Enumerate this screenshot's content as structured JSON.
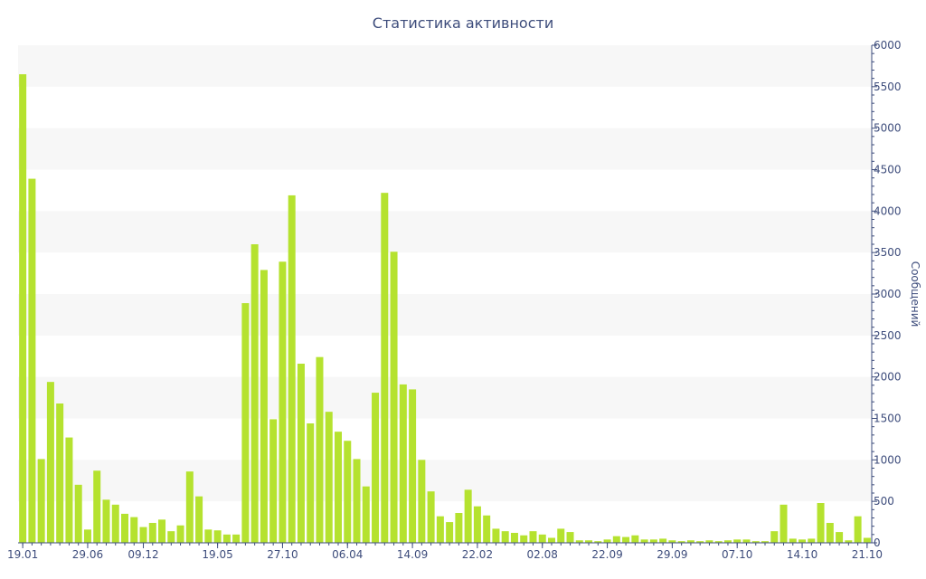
{
  "chart_data": {
    "type": "bar",
    "title": "Статистика активности",
    "ylabel": "Сообщений",
    "xlabel": "",
    "ylim": [
      0,
      6000
    ],
    "y_ticks": [
      0,
      500,
      1000,
      1500,
      2000,
      2500,
      3000,
      3500,
      4000,
      4500,
      5000,
      5500,
      6000
    ],
    "y_axis_position": "right",
    "x_tick_labels": [
      {
        "index": 0,
        "label": "19.01"
      },
      {
        "index": 7,
        "label": "29.06"
      },
      {
        "index": 13,
        "label": "09.12"
      },
      {
        "index": 21,
        "label": "19.05"
      },
      {
        "index": 28,
        "label": "27.10"
      },
      {
        "index": 35,
        "label": "06.04"
      },
      {
        "index": 42,
        "label": "14.09"
      },
      {
        "index": 49,
        "label": "22.02"
      },
      {
        "index": 56,
        "label": "02.08"
      },
      {
        "index": 63,
        "label": "22.09"
      },
      {
        "index": 70,
        "label": "29.09"
      },
      {
        "index": 77,
        "label": "07.10"
      },
      {
        "index": 84,
        "label": "14.10"
      },
      {
        "index": 91,
        "label": "21.10"
      }
    ],
    "values": [
      5650,
      4390,
      1010,
      1940,
      1680,
      1270,
      700,
      160,
      870,
      520,
      460,
      350,
      310,
      190,
      240,
      280,
      140,
      210,
      860,
      560,
      160,
      150,
      100,
      100,
      2890,
      3600,
      3290,
      1490,
      3390,
      4190,
      2160,
      1440,
      2240,
      1580,
      1340,
      1230,
      1010,
      680,
      1810,
      4220,
      3510,
      1910,
      1850,
      1000,
      620,
      320,
      250,
      360,
      640,
      440,
      330,
      170,
      140,
      120,
      90,
      140,
      100,
      60,
      170,
      130,
      30,
      30,
      20,
      40,
      80,
      70,
      90,
      40,
      40,
      50,
      30,
      20,
      30,
      20,
      30,
      20,
      30,
      40,
      40,
      20,
      20,
      140,
      460,
      50,
      40,
      50,
      480,
      240,
      130,
      30,
      320,
      60
    ],
    "bar_color": "#b5e22f",
    "grid": "alternating horizontal bands",
    "band_color": "#f7f7f7"
  }
}
